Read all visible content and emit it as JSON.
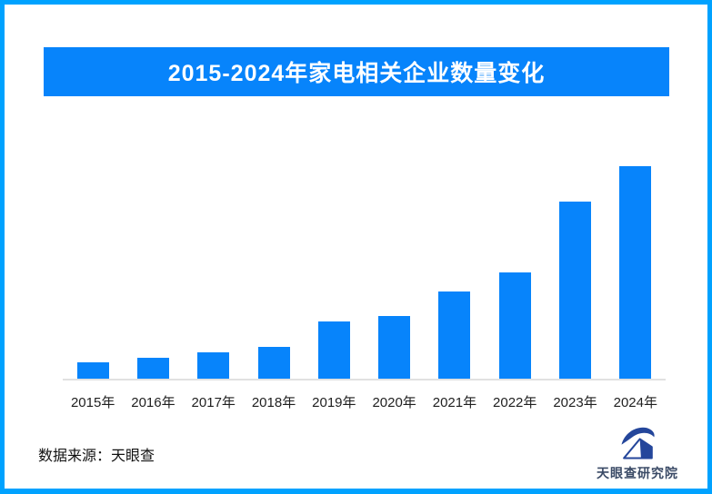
{
  "page": {
    "border_color": "#00A2FF",
    "background": "#FFFFFF"
  },
  "header": {
    "title": "2015-2024年家电相关企业数量变化",
    "bg_color": "#0784FB",
    "text_color": "#FFFFFF"
  },
  "chart_data": {
    "type": "bar",
    "title": "2015-2024年家电相关企业数量变化",
    "categories": [
      "2015年",
      "2016年",
      "2017年",
      "2018年",
      "2019年",
      "2020年",
      "2021年",
      "2022年",
      "2023年",
      "2024年"
    ],
    "values": [
      18,
      23,
      29,
      35,
      63,
      69,
      96,
      117,
      195,
      234
    ],
    "values_unit": "relative bar height in px (chart displays no numeric y-axis)",
    "values_relative_percent_of_max": [
      7.7,
      9.8,
      12.4,
      15.0,
      26.9,
      29.5,
      41.0,
      50.0,
      83.3,
      100.0
    ],
    "xlabel": "",
    "ylabel": "",
    "legend": "none",
    "grid": false,
    "bar_color": "#0784FB",
    "axis_line_color": "#E1E1E1",
    "tick_label_color": "#1F1F1F"
  },
  "footer": {
    "source_label": "数据来源：天眼查",
    "logo_icon": "tianyancha-eye-swoosh",
    "logo_icon_color": "#24469B",
    "logo_text": "天眼查研究院",
    "logo_text_color": "#3A4A66"
  }
}
